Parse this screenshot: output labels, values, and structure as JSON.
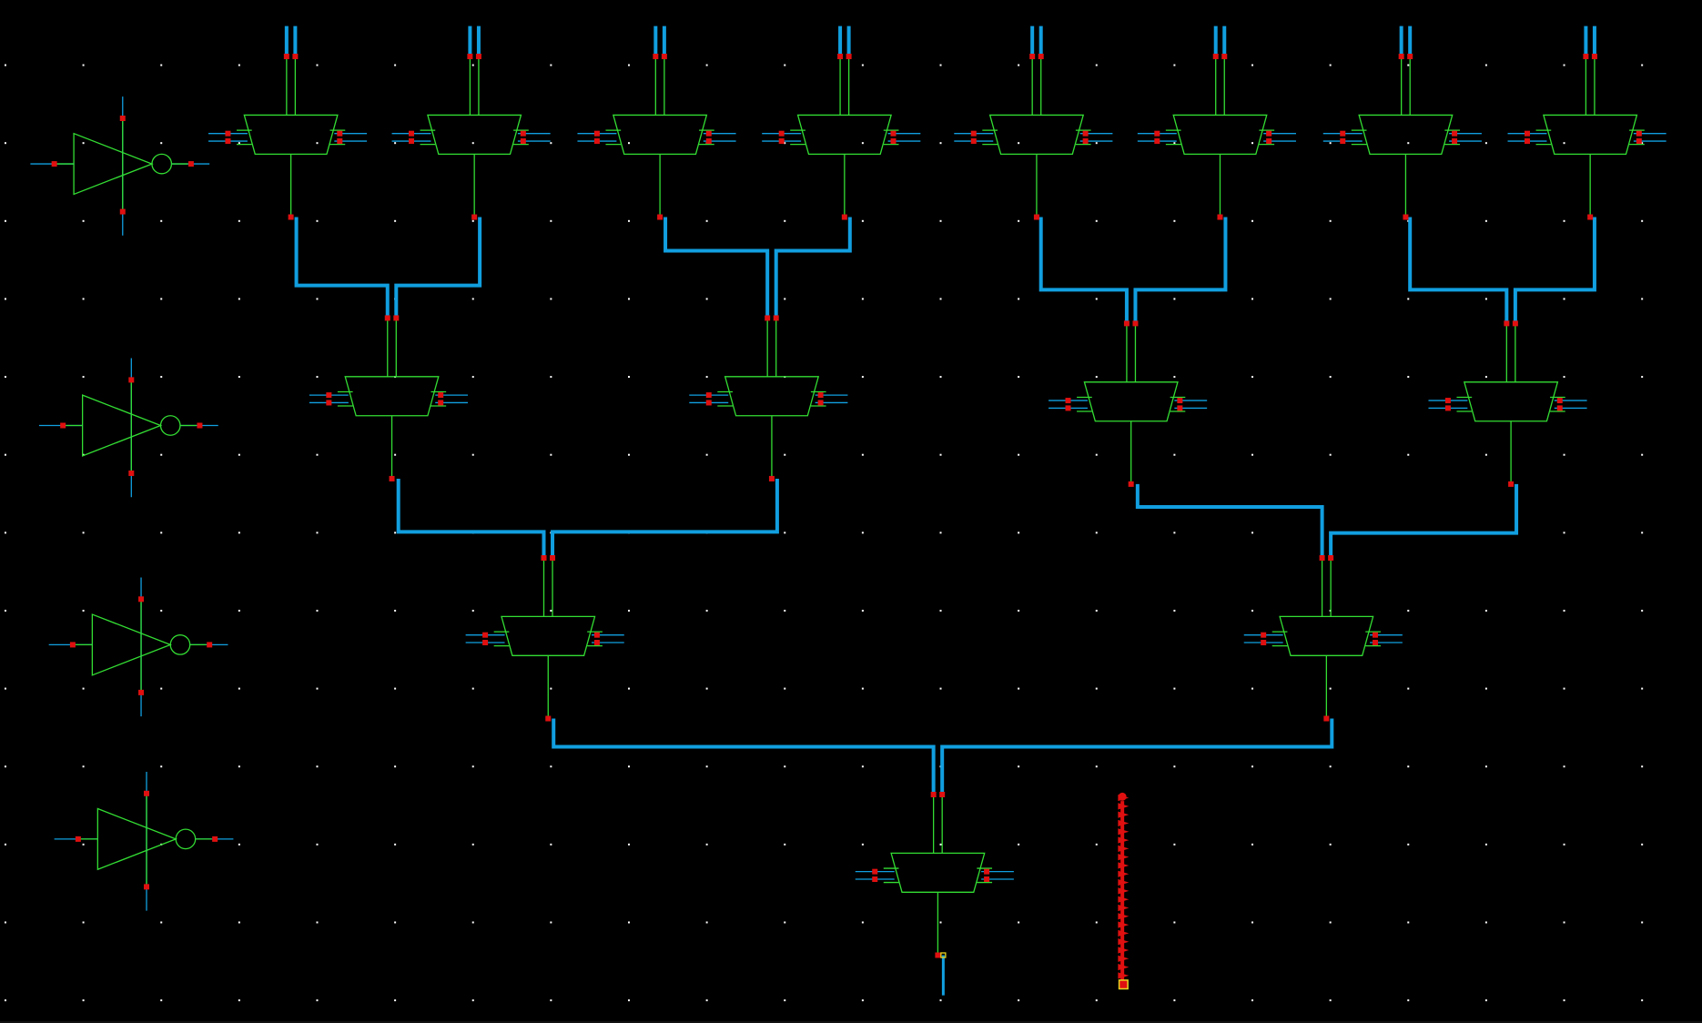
{
  "app": {
    "view": "schematic-editor",
    "background_color": "#000000",
    "grid_dot_color": "#ffffff",
    "grid_visible": true
  },
  "colors": {
    "symbol": "#33dd33",
    "wire": "#119fe0",
    "pin": "#e01010",
    "marker": "#e8d820"
  },
  "components": {
    "inverters": 4,
    "mux_rows": [
      8,
      4,
      2,
      1
    ],
    "marker_column_pins": 22
  },
  "icons": {
    "inverter": "inverter-icon",
    "mux": "mux-icon",
    "pin": "pin-icon",
    "marker": "marker-icon"
  }
}
